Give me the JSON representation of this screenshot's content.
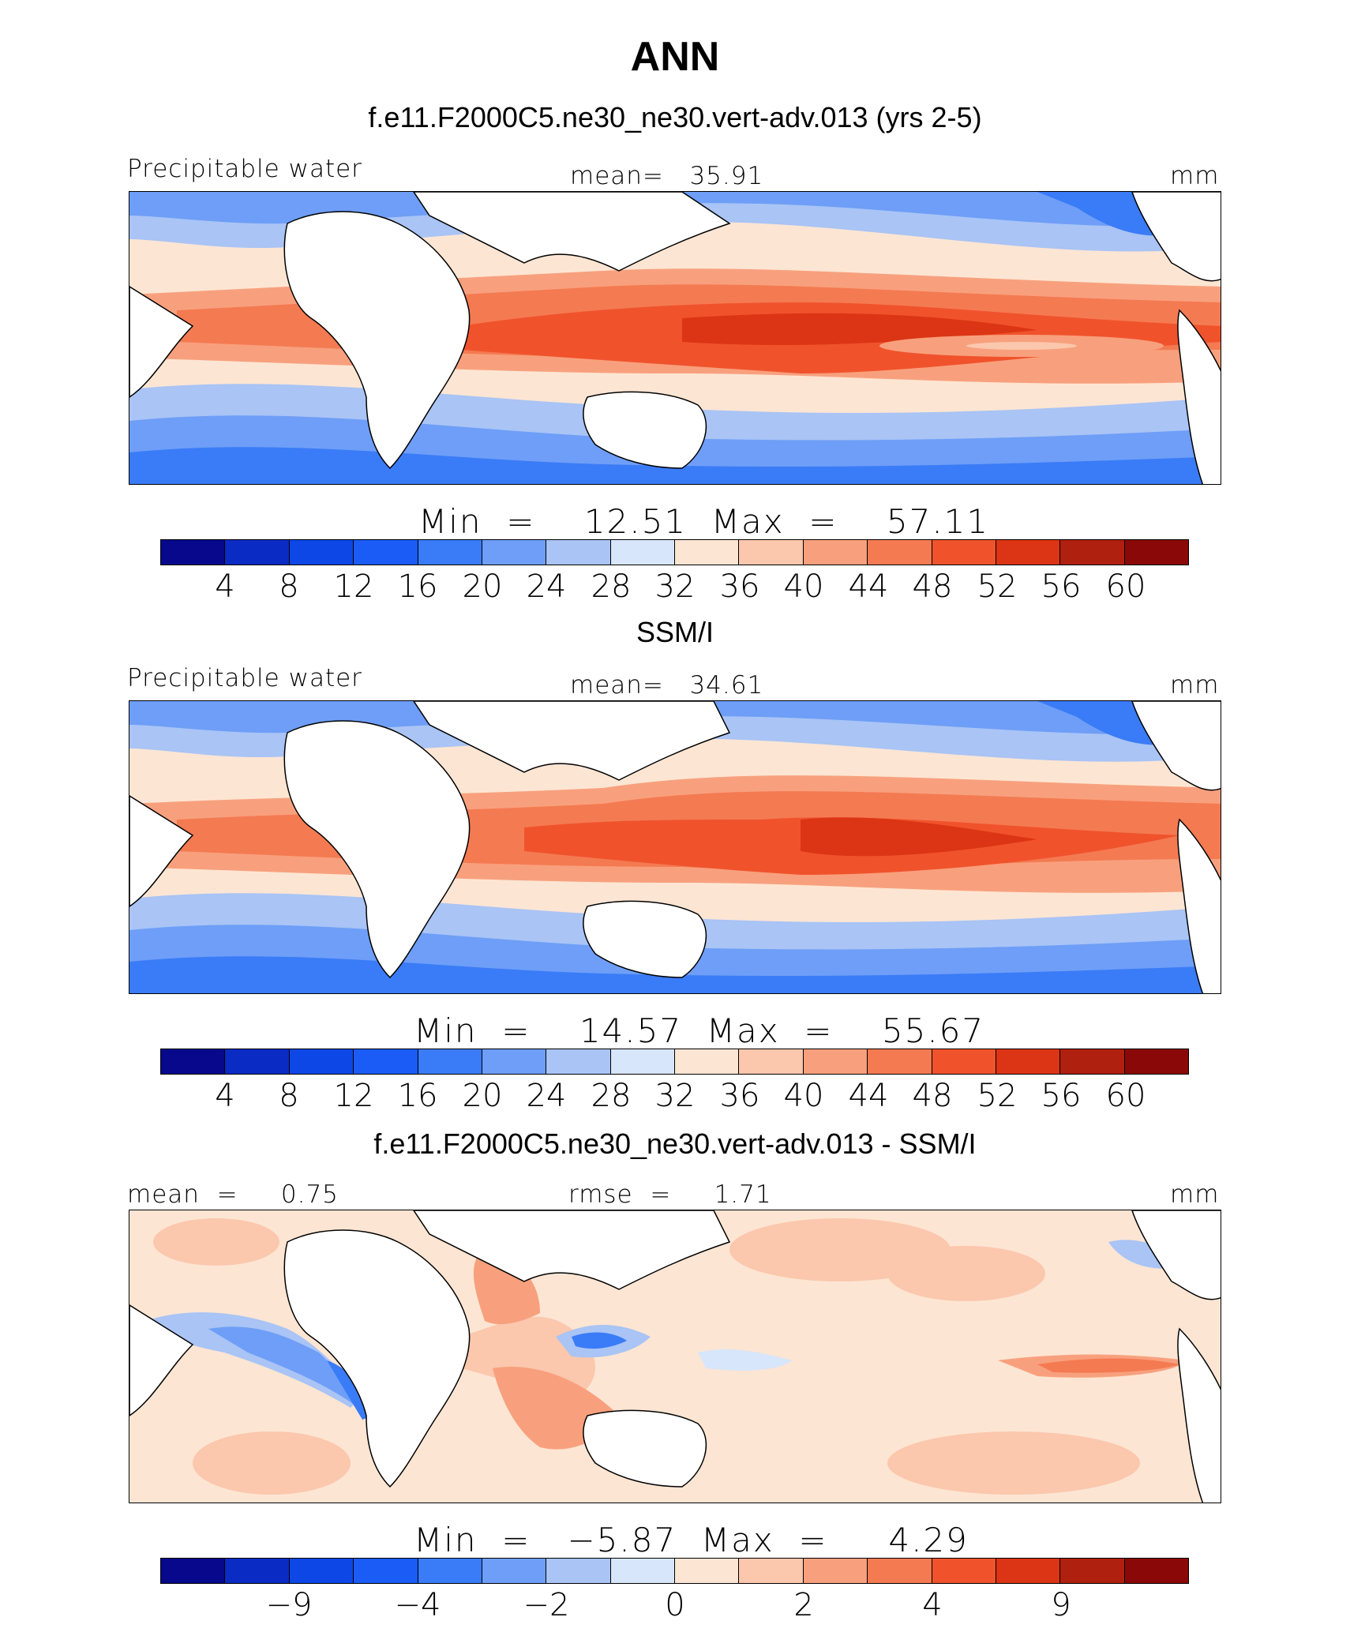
{
  "figure": {
    "title": "ANN"
  },
  "colorbar": {
    "colors": [
      "#08088c",
      "#0a2bc4",
      "#0d47e6",
      "#1a5cf5",
      "#3a7bf7",
      "#6e9ef7",
      "#a9c4f5",
      "#d7e6fa",
      "#fde5d3",
      "#fbc7ad",
      "#f8a07d",
      "#f47a52",
      "#f0532c",
      "#dc3515",
      "#b0200e",
      "#8b0808"
    ]
  },
  "panels": [
    {
      "id": "model",
      "title": "f.e11.F2000C5.ne30_ne30.vert-adv.013 (yrs 2-5)",
      "left_label": "Precipitable water",
      "center_label": "mean=   35.91",
      "right_label": "mm",
      "minmax": "Min  =    12.51  Max  =    57.11",
      "ticks": [
        "4",
        "8",
        "12",
        "16",
        "20",
        "24",
        "28",
        "32",
        "36",
        "40",
        "44",
        "48",
        "52",
        "56",
        "60"
      ]
    },
    {
      "id": "obs",
      "title": "SSM/I",
      "left_label": "Precipitable water",
      "center_label": "mean=   34.61",
      "right_label": "mm",
      "minmax": "Min  =    14.57  Max  =    55.67",
      "ticks": [
        "4",
        "8",
        "12",
        "16",
        "20",
        "24",
        "28",
        "32",
        "36",
        "40",
        "44",
        "48",
        "52",
        "56",
        "60"
      ]
    },
    {
      "id": "diff",
      "title": "f.e11.F2000C5.ne30_ne30.vert-adv.013 - SSM/I",
      "left_label": "mean  =     0.75",
      "center_label": "rmse  =     1.71",
      "right_label": "mm",
      "minmax": "Min  =   −5.87  Max  =     4.29",
      "ticks": [
        "−9",
        "−4",
        "−2",
        "0",
        "2",
        "4",
        "9"
      ]
    }
  ]
}
